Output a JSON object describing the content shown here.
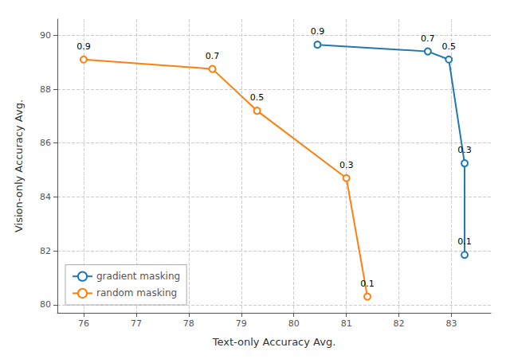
{
  "chart_data": {
    "type": "line",
    "x_label": "Text-only Accuracy Avg.",
    "y_label": "Vision-only Accuracy Avg.",
    "series": [
      {
        "name": "gradient masking",
        "color": "#1f77b4",
        "marker": "o",
        "x": [
          80.45,
          82.55,
          82.95,
          83.25,
          83.25
        ],
        "values": [
          89.65,
          89.4,
          89.1,
          85.25,
          81.85
        ],
        "annotations": [
          "0.9",
          "0.7",
          "0.5",
          "0.3",
          "0.1"
        ]
      },
      {
        "name": "random masking",
        "color": "#ff7f0e",
        "marker": "o",
        "x": [
          76.0,
          78.45,
          79.3,
          81.0,
          81.4
        ],
        "values": [
          89.1,
          88.75,
          87.2,
          84.7,
          80.3
        ],
        "annotations": [
          "0.9",
          "0.7",
          "0.5",
          "0.3",
          "0.1"
        ]
      }
    ],
    "xlim": [
      75.5,
      83.75
    ],
    "ylim": [
      79.7,
      90.6
    ],
    "xticks": [
      76,
      77,
      78,
      79,
      80,
      81,
      82,
      83
    ],
    "yticks": [
      80,
      82,
      84,
      86,
      88,
      90
    ],
    "grid": true,
    "legend": "lower left"
  }
}
